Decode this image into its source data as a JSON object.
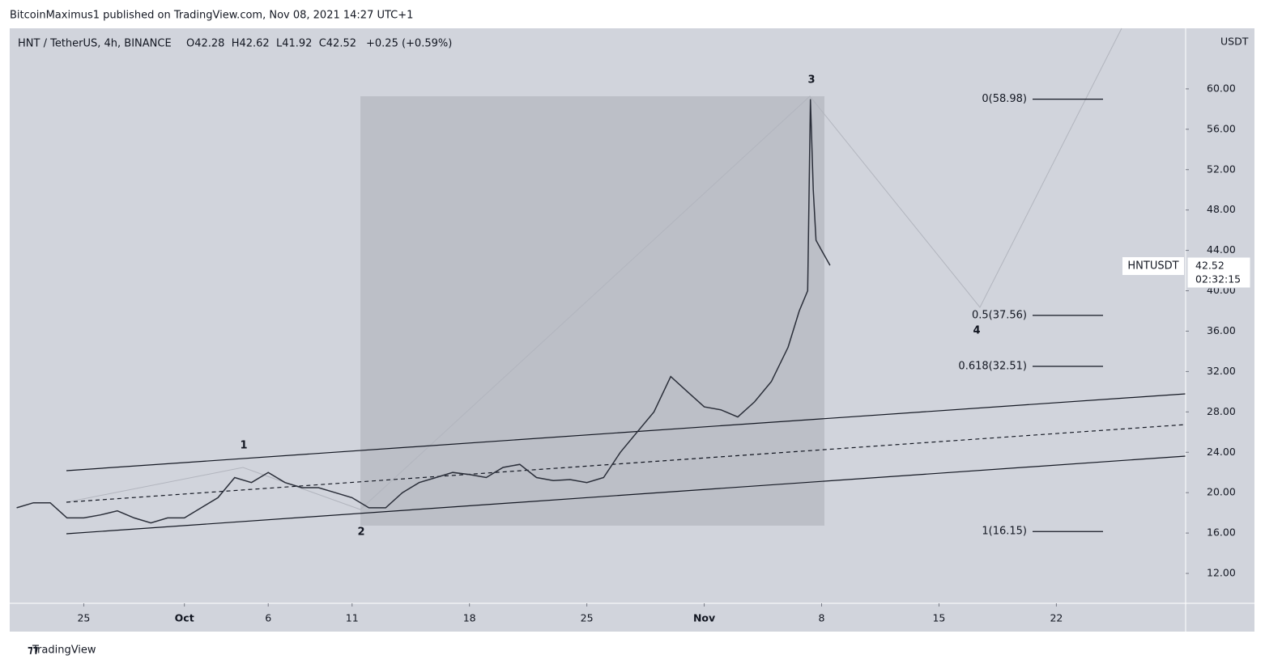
{
  "header": {
    "text": "BitcoinMaximus1 published on TradingView.com, Nov 08, 2021 14:27 UTC+1"
  },
  "footer": {
    "brand": "TradingView"
  },
  "chart_data": {
    "type": "line",
    "symbol": "HNT / TetherUS, 4h, BINANCE",
    "ohlc": "O42.28  H42.62  L41.92  C42.52",
    "change": "+0.25 (+0.59%)",
    "y_unit": "USDT",
    "price_label": {
      "ticker": "HNTUSDT",
      "price": "42.52",
      "countdown": "02:32:15"
    },
    "x": [
      "2021-09-21",
      "2021-09-22",
      "2021-09-23",
      "2021-09-24",
      "2021-09-25",
      "2021-09-26",
      "2021-09-27",
      "2021-09-28",
      "2021-09-29",
      "2021-09-30",
      "2021-10-01",
      "2021-10-02",
      "2021-10-03",
      "2021-10-04",
      "2021-10-05",
      "2021-10-06",
      "2021-10-07",
      "2021-10-08",
      "2021-10-09",
      "2021-10-10",
      "2021-10-11",
      "2021-10-12",
      "2021-10-13",
      "2021-10-14",
      "2021-10-15",
      "2021-10-16",
      "2021-10-17",
      "2021-10-18",
      "2021-10-19",
      "2021-10-20",
      "2021-10-21",
      "2021-10-22",
      "2021-10-23",
      "2021-10-24",
      "2021-10-25",
      "2021-10-26",
      "2021-10-27",
      "2021-10-28",
      "2021-10-29",
      "2021-10-30",
      "2021-10-31",
      "2021-11-01",
      "2021-11-02",
      "2021-11-03",
      "2021-11-04",
      "2021-11-05",
      "2021-11-06",
      "2021-11-06T16:00",
      "2021-11-07T04:00",
      "2021-11-07T08:00",
      "2021-11-07T12:00",
      "2021-11-07T16:00",
      "2021-11-08T00:00",
      "2021-11-08T12:00"
    ],
    "series": [
      {
        "name": "HNTUSDT",
        "color": "#2a2e39",
        "values": [
          18.5,
          19,
          19,
          17.5,
          17.5,
          17.8,
          18.2,
          17.5,
          17,
          17.5,
          17.5,
          18.5,
          19.5,
          21.5,
          21,
          22,
          21,
          20.5,
          20.5,
          20,
          19.5,
          18.5,
          18.5,
          20,
          21,
          21.5,
          22,
          21.8,
          21.5,
          22.5,
          22.8,
          21.5,
          21.2,
          21.3,
          21,
          21.5,
          24,
          26,
          28,
          31.5,
          30,
          28.5,
          28.2,
          27.5,
          29,
          31,
          34.4,
          38,
          40,
          58.98,
          50,
          45,
          44,
          42.52
        ]
      }
    ],
    "xlim": [
      "2021-09-20T14:00",
      "2021-11-29T17:00"
    ],
    "xticks": [
      {
        "value": "2021-09-25",
        "label": "25"
      },
      {
        "value": "2021-10-01",
        "label": "Oct"
      },
      {
        "value": "2021-10-06",
        "label": "6"
      },
      {
        "value": "2021-10-11",
        "label": "11"
      },
      {
        "value": "2021-10-18",
        "label": "18"
      },
      {
        "value": "2021-10-25",
        "label": "25"
      },
      {
        "value": "2021-11-01",
        "label": "Nov"
      },
      {
        "value": "2021-11-08",
        "label": "8"
      },
      {
        "value": "2021-11-15",
        "label": "15"
      },
      {
        "value": "2021-11-22",
        "label": "22"
      }
    ],
    "ylim": [
      9.04,
      66.0
    ],
    "yticks": [
      {
        "value": 12,
        "label": "12.00"
      },
      {
        "value": 16,
        "label": "16.00"
      },
      {
        "value": 20,
        "label": "20.00"
      },
      {
        "value": 24,
        "label": "24.00"
      },
      {
        "value": 28,
        "label": "28.00"
      },
      {
        "value": 32,
        "label": "32.00"
      },
      {
        "value": 36,
        "label": "36.00"
      },
      {
        "value": 40,
        "label": "40.00"
      },
      {
        "value": 44,
        "label": "44.00"
      },
      {
        "value": 48,
        "label": "48.00"
      },
      {
        "value": 52,
        "label": "52.00"
      },
      {
        "value": 56,
        "label": "56.00"
      },
      {
        "value": 60,
        "label": "60.00"
      }
    ],
    "fib_levels": [
      {
        "value": 58.98,
        "label": "0(58.98)"
      },
      {
        "value": 37.56,
        "label": "0.5(37.56)"
      },
      {
        "value": 32.51,
        "label": "0.618(32.51)"
      },
      {
        "value": 16.15,
        "label": "1(16.15)"
      }
    ],
    "wave_labels": [
      "1",
      "2",
      "3",
      "4"
    ]
  }
}
